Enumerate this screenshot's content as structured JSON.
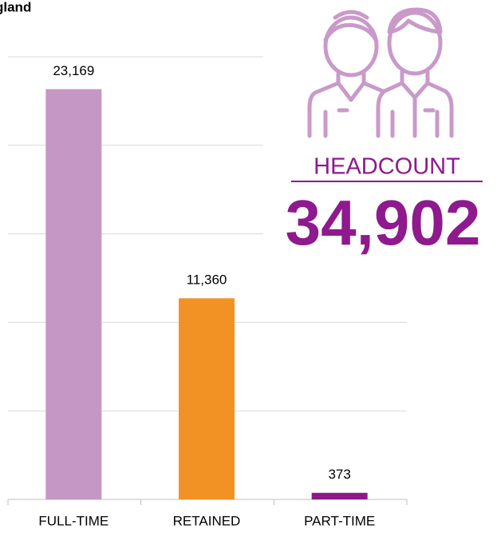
{
  "chart_data": {
    "type": "bar",
    "title": "gland",
    "categories": [
      "FULL-TIME",
      "RETAINED",
      "PART-TIME"
    ],
    "values": [
      23169,
      11360,
      373
    ],
    "value_labels": [
      "23,169",
      "11,360",
      "373"
    ],
    "colors": [
      "#c597c4",
      "#f39224",
      "#8b1a89"
    ],
    "ylim": [
      0,
      25000
    ],
    "yticks": [
      0,
      5000,
      10000,
      15000,
      20000,
      25000
    ],
    "grid": true,
    "annotations": [
      "HEADCOUNT",
      "34,902"
    ]
  }
}
